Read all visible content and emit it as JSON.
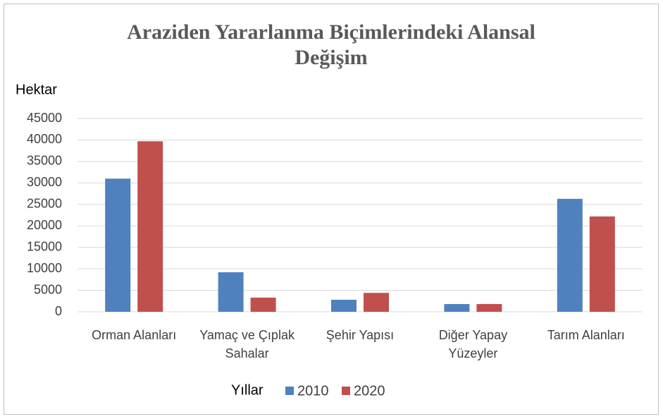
{
  "chart_data": {
    "type": "bar",
    "title": [
      "Araziden Yararlanma Biçimlerindeki Alansal",
      "Değişim"
    ],
    "y_label": "Hektar",
    "legend_title": "Yıllar",
    "categories": [
      "Orman Alanları",
      "Yamaç ve Çıplak Sahalar",
      "Şehir Yapısı",
      "Diğer Yapay Yüzeyler",
      "Tarım Alanları"
    ],
    "series": [
      {
        "name": "2010",
        "color": "#4f81bd",
        "values": [
          31000,
          9200,
          2800,
          1800,
          26300
        ]
      },
      {
        "name": "2020",
        "color": "#c0504d",
        "values": [
          39700,
          3300,
          4400,
          1800,
          22200
        ]
      }
    ],
    "ylim": [
      0,
      45000
    ],
    "yticks": [
      0,
      5000,
      10000,
      15000,
      20000,
      25000,
      30000,
      35000,
      40000,
      45000
    ],
    "grid": true,
    "legend": "bottom"
  }
}
